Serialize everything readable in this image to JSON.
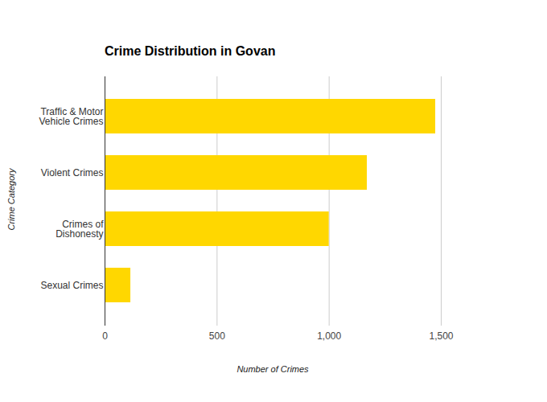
{
  "chart_data": {
    "type": "bar",
    "title": "Crime Distribution in Govan",
    "orientation": "horizontal",
    "x_label": "Number of Crimes",
    "y_label": "Crime Category",
    "categories": [
      "Traffic & Motor Vehicle Crimes",
      "Violent Crimes",
      "Crimes of Dishonesty",
      "Sexual Crimes"
    ],
    "values": [
      1475,
      1170,
      1000,
      115
    ],
    "color": "#FFD700",
    "xlim": [
      0,
      1500
    ],
    "xticks": [
      0,
      500,
      1000,
      1500
    ],
    "grid": true
  }
}
